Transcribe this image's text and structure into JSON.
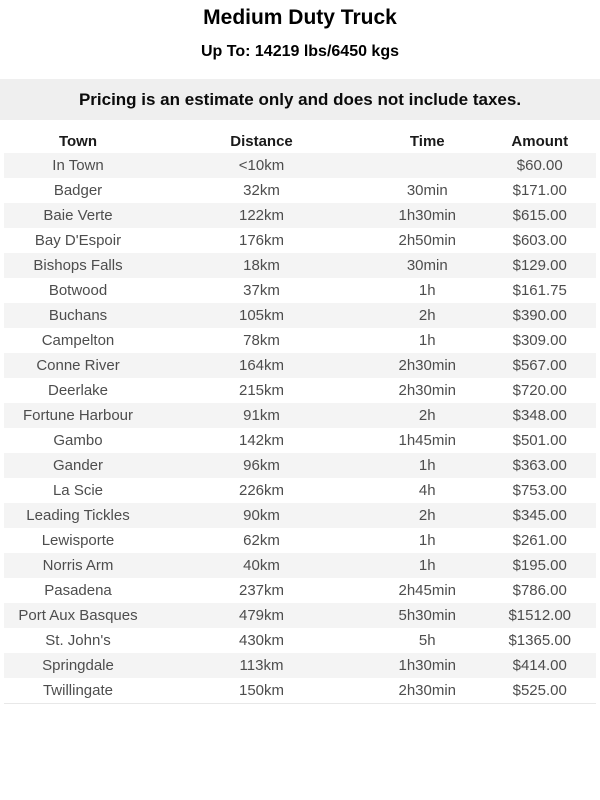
{
  "header": {
    "title": "Medium Duty Truck",
    "subtitle": "Up To: 14219 lbs/6450 kgs"
  },
  "notice": {
    "text": "Pricing is an estimate only and does not include taxes."
  },
  "table": {
    "columns": [
      "Town",
      "Distance",
      "Time",
      "Amount"
    ],
    "rows": [
      {
        "town": "In Town",
        "distance": "<10km",
        "time": "",
        "amount": "$60.00"
      },
      {
        "town": "Badger",
        "distance": "32km",
        "time": "30min",
        "amount": "$171.00"
      },
      {
        "town": "Baie Verte",
        "distance": "122km",
        "time": "1h30min",
        "amount": "$615.00"
      },
      {
        "town": "Bay D'Espoir",
        "distance": "176km",
        "time": "2h50min",
        "amount": "$603.00"
      },
      {
        "town": "Bishops Falls",
        "distance": "18km",
        "time": "30min",
        "amount": "$129.00"
      },
      {
        "town": "Botwood",
        "distance": "37km",
        "time": "1h",
        "amount": "$161.75"
      },
      {
        "town": "Buchans",
        "distance": "105km",
        "time": "2h",
        "amount": "$390.00"
      },
      {
        "town": "Campelton",
        "distance": "78km",
        "time": "1h",
        "amount": "$309.00"
      },
      {
        "town": "Conne River",
        "distance": "164km",
        "time": "2h30min",
        "amount": "$567.00"
      },
      {
        "town": "Deerlake",
        "distance": "215km",
        "time": "2h30min",
        "amount": "$720.00"
      },
      {
        "town": "Fortune Harbour",
        "distance": "91km",
        "time": "2h",
        "amount": "$348.00"
      },
      {
        "town": "Gambo",
        "distance": "142km",
        "time": "1h45min",
        "amount": "$501.00"
      },
      {
        "town": "Gander",
        "distance": "96km",
        "time": "1h",
        "amount": "$363.00"
      },
      {
        "town": "La Scie",
        "distance": "226km",
        "time": "4h",
        "amount": "$753.00"
      },
      {
        "town": "Leading Tickles",
        "distance": "90km",
        "time": "2h",
        "amount": "$345.00"
      },
      {
        "town": "Lewisporte",
        "distance": "62km",
        "time": "1h",
        "amount": "$261.00"
      },
      {
        "town": "Norris Arm",
        "distance": "40km",
        "time": "1h",
        "amount": "$195.00"
      },
      {
        "town": "Pasadena",
        "distance": "237km",
        "time": "2h45min",
        "amount": "$786.00"
      },
      {
        "town": "Port Aux Basques",
        "distance": "479km",
        "time": "5h30min",
        "amount": "$1512.00"
      },
      {
        "town": "St. John's",
        "distance": "430km",
        "time": "5h",
        "amount": "$1365.00"
      },
      {
        "town": "Springdale",
        "distance": "113km",
        "time": "1h30min",
        "amount": "$414.00"
      },
      {
        "town": "Twillingate",
        "distance": "150km",
        "time": "2h30min",
        "amount": "$525.00"
      }
    ]
  },
  "colors": {
    "stripe_bg": "#f4f4f4",
    "notice_bg": "#efefef",
    "header_text": "#1a1a1a",
    "cell_text": "#4d4d4d"
  }
}
